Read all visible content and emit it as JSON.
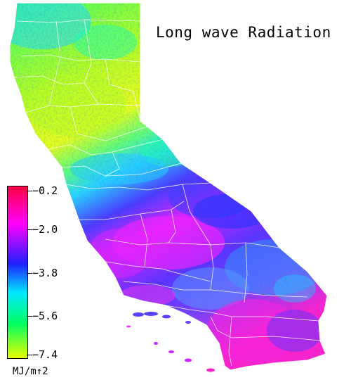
{
  "title": "Long wave Radiation",
  "legend": {
    "ticks": [
      "−0.2",
      "−2.0",
      "−3.8",
      "−5.6",
      "−7.4"
    ],
    "unit": "MJ/m↑2",
    "colors": [
      "#ff0044",
      "#ff00ff",
      "#2020ff",
      "#00e8ff",
      "#00ff60",
      "#e8ff00"
    ]
  },
  "map": {
    "region": "California",
    "color_scale_order": "red = -0.2 (high), yellow = -7.4 (low)"
  }
}
